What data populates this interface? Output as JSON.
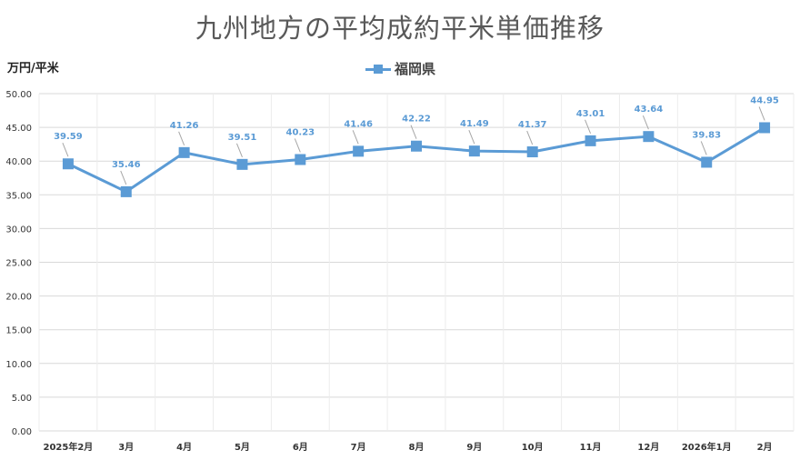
{
  "chart_data": {
    "type": "line",
    "title": "九州地方の平均成約平米単価推移",
    "ylabel": "万円/平米",
    "xlabel": "",
    "categories": [
      "2025年2月",
      "3月",
      "4月",
      "5月",
      "6月",
      "7月",
      "8月",
      "9月",
      "10月",
      "11月",
      "12月",
      "2026年1月",
      "2月"
    ],
    "series": [
      {
        "name": "福岡県",
        "values": [
          39.59,
          35.46,
          41.26,
          39.51,
          40.23,
          41.46,
          42.22,
          41.49,
          41.37,
          43.01,
          43.64,
          39.83,
          44.95
        ]
      }
    ],
    "ylim": [
      0,
      50
    ],
    "ytick_labels": [
      "0.00",
      "5.00",
      "10.00",
      "15.00",
      "20.00",
      "25.00",
      "30.00",
      "35.00",
      "40.00",
      "45.00",
      "50.00"
    ],
    "grid": true,
    "legend_position": "top-center",
    "colors": {
      "series": "#5b9bd5",
      "grid": "#d9d9d9",
      "text": "#595959"
    }
  }
}
